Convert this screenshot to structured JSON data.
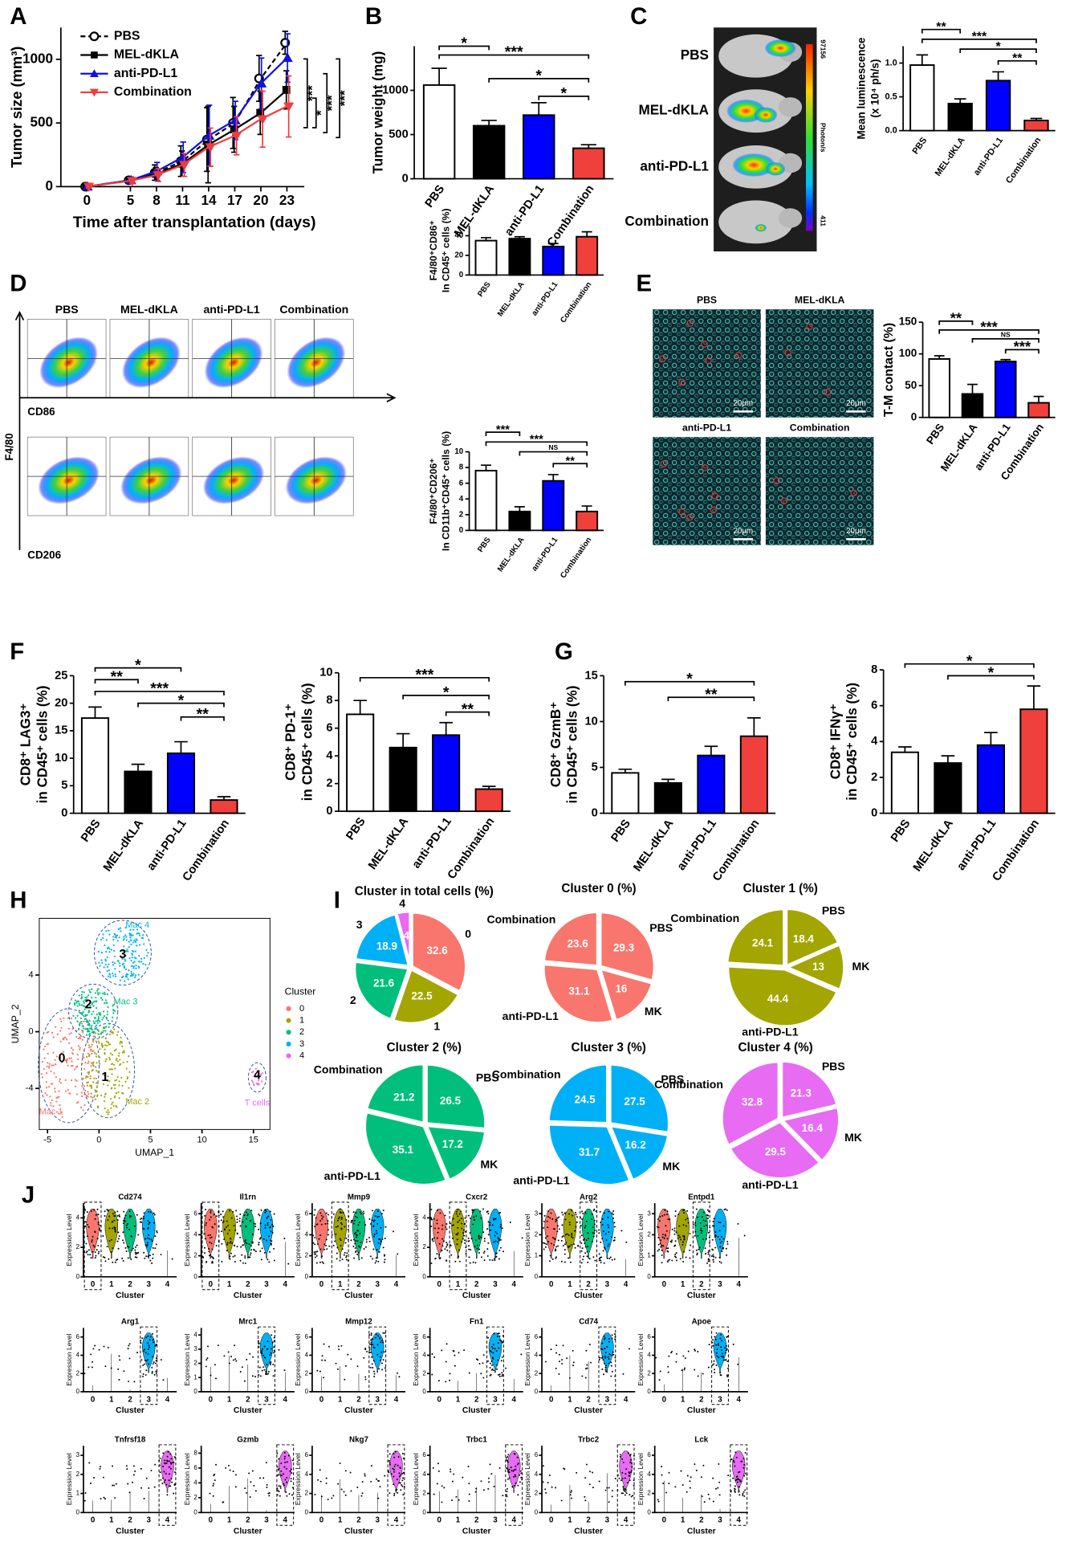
{
  "panels": [
    "A",
    "B",
    "C",
    "D",
    "E",
    "F",
    "G",
    "H",
    "I",
    "J"
  ],
  "chart_data": [
    {
      "type": "line",
      "x_label": "Time after transplantation (days)",
      "y_label": "Tumor size (mm³)",
      "x": [
        0,
        5,
        8,
        11,
        14,
        17,
        20,
        23
      ],
      "xlim": [
        -3,
        25
      ],
      "xticks": [
        0,
        5,
        8,
        11,
        14,
        17,
        20,
        23
      ],
      "ylim": [
        0,
        1250
      ],
      "yticks": [
        0,
        500,
        1000
      ],
      "series": [
        {
          "name": "PBS",
          "color": "#000000",
          "marker": "circle-open",
          "line_style": "dashed",
          "values": [
            0,
            50,
            110,
            200,
            370,
            500,
            850,
            1130
          ],
          "errors": [
            10,
            20,
            60,
            120,
            250,
            200,
            180,
            90
          ]
        },
        {
          "name": "MEL-dKLA",
          "color": "#000000",
          "marker": "square",
          "line_style": "solid",
          "values": [
            0,
            50,
            100,
            180,
            330,
            450,
            580,
            760
          ],
          "errors": [
            10,
            20,
            50,
            100,
            300,
            180,
            170,
            150
          ]
        },
        {
          "name": "anti-PD-L1",
          "color": "#1010e0",
          "marker": "triangle",
          "line_style": "solid",
          "values": [
            0,
            50,
            120,
            230,
            400,
            520,
            810,
            1010
          ],
          "errors": [
            10,
            25,
            70,
            120,
            240,
            150,
            200,
            190
          ]
        },
        {
          "name": "Combination",
          "color": "#f03c3c",
          "marker": "triangle-down",
          "line_style": "solid",
          "values": [
            0,
            45,
            90,
            170,
            310,
            400,
            530,
            630
          ],
          "errors": [
            10,
            20,
            50,
            90,
            150,
            150,
            220,
            240
          ]
        }
      ],
      "annotations": [
        "***",
        "*",
        "***",
        "***"
      ]
    },
    {
      "type": "bar",
      "y_label": "Tumor weight (mg)",
      "categories": [
        "PBS",
        "MEL-dKLA",
        "anti-PD-L1",
        "Combination"
      ],
      "values": [
        1060,
        600,
        720,
        345
      ],
      "errors": [
        190,
        60,
        140,
        40
      ],
      "colors": [
        "#ffffff",
        "#000000",
        "#0000ff",
        "#f0403c"
      ],
      "ylim": [
        0,
        1500
      ],
      "yticks": [
        0,
        500,
        1000
      ],
      "annotations": [
        "*",
        "***",
        "*",
        "*"
      ]
    },
    {
      "type": "bar",
      "y_label": [
        "Mean luminescence",
        "(x 10⁴ ph/s)"
      ],
      "categories": [
        "PBS",
        "MEL-dKLA",
        "anti-PD-L1",
        "Combination"
      ],
      "values": [
        0.97,
        0.4,
        0.74,
        0.15
      ],
      "errors": [
        0.15,
        0.07,
        0.13,
        0.03
      ],
      "colors": [
        "#ffffff",
        "#000000",
        "#0000ff",
        "#f0403c"
      ],
      "ylim": [
        0,
        1.25
      ],
      "yticks": [
        {
          "value": 0,
          "label": "0.0"
        },
        {
          "value": 0.5,
          "label": "0.5"
        },
        {
          "value": 1,
          "label": "1.0"
        }
      ],
      "annotations": [
        "**",
        "***",
        "*",
        "**"
      ]
    },
    {
      "type": "bar",
      "y_label": [
        "F4/80⁺CD86⁺",
        "In CD45⁺ cells (%)"
      ],
      "categories": [
        "PBS",
        "MEL-dKLA",
        "anti-PD-L1",
        "Combination"
      ],
      "values": [
        35,
        37,
        29,
        39
      ],
      "errors": [
        3,
        2,
        3,
        5
      ],
      "colors": [
        "#ffffff",
        "#000000",
        "#0000ff",
        "#f0403c"
      ],
      "ylim": [
        0,
        50
      ],
      "yticks": [
        0,
        20,
        40
      ],
      "annotations": []
    },
    {
      "type": "bar",
      "y_label": [
        "F4/80⁺CD206⁺",
        "In CD11b⁺CD45⁺ cells (%)"
      ],
      "categories": [
        "PBS",
        "MEL-dKLA",
        "anti-PD-L1",
        "Combination"
      ],
      "values": [
        7.6,
        2.4,
        6.3,
        2.4
      ],
      "errors": [
        0.7,
        0.6,
        0.8,
        0.7
      ],
      "colors": [
        "#ffffff",
        "#000000",
        "#0000ff",
        "#f0403c"
      ],
      "ylim": [
        0,
        10
      ],
      "yticks": [
        0,
        2,
        4,
        6,
        8,
        10
      ],
      "annotations": [
        "***",
        "***",
        "NS",
        "**"
      ]
    },
    {
      "type": "bar",
      "y_label": "T-M contact (%)",
      "categories": [
        "PBS",
        "MEL-dKLA",
        "anti-PD-L1",
        "Combination"
      ],
      "values": [
        92,
        37,
        88,
        23
      ],
      "errors": [
        5,
        15,
        3,
        10
      ],
      "colors": [
        "#ffffff",
        "#000000",
        "#0000ff",
        "#f0403c"
      ],
      "ylim": [
        0,
        150
      ],
      "yticks": [
        0,
        50,
        100,
        150
      ],
      "annotations": [
        "**",
        "***",
        "NS",
        "***"
      ]
    },
    {
      "type": "bar",
      "y_label": [
        "CD8⁺ LAG3⁺",
        "in CD45⁺ cells (%)"
      ],
      "categories": [
        "PBS",
        "MEL-dKLA",
        "anti-PD-L1",
        "Combination"
      ],
      "values": [
        17.3,
        7.6,
        10.9,
        2.4
      ],
      "errors": [
        2,
        1.3,
        2.1,
        0.6
      ],
      "colors": [
        "#ffffff",
        "#000000",
        "#0000ff",
        "#f0403c"
      ],
      "ylim": [
        0,
        25
      ],
      "yticks": [
        0,
        5,
        10,
        15,
        20,
        25
      ],
      "annotations": [
        "*",
        "**",
        "***",
        "*",
        "**"
      ]
    },
    {
      "type": "bar",
      "y_label": [
        "CD8⁺ PD-1⁺",
        "in CD45⁺ cells (%)"
      ],
      "categories": [
        "PBS",
        "MEL-dKLA",
        "anti-PD-L1",
        "Combination"
      ],
      "values": [
        7.0,
        4.6,
        5.5,
        1.6
      ],
      "errors": [
        1,
        1,
        0.9,
        0.2
      ],
      "colors": [
        "#ffffff",
        "#000000",
        "#0000ff",
        "#f0403c"
      ],
      "ylim": [
        0,
        10
      ],
      "yticks": [
        0,
        2,
        4,
        6,
        8,
        10
      ],
      "annotations": [
        "***",
        "*",
        "**"
      ]
    },
    {
      "type": "bar",
      "y_label": [
        "CD8⁺ GzmB⁺",
        "in CD45⁺ cells (%)"
      ],
      "categories": [
        "PBS",
        "MEL-dKLA",
        "anti-PD-L1",
        "Combination"
      ],
      "values": [
        4.4,
        3.3,
        6.3,
        8.4
      ],
      "errors": [
        0.4,
        0.4,
        1,
        2
      ],
      "colors": [
        "#ffffff",
        "#000000",
        "#0000ff",
        "#f0403c"
      ],
      "ylim": [
        0,
        15
      ],
      "yticks": [
        0,
        5,
        10,
        15
      ],
      "annotations": [
        "*",
        "**"
      ]
    },
    {
      "type": "bar",
      "y_label": [
        "CD8⁺ IFNγ⁺",
        "in CD45⁺ cells (%)"
      ],
      "categories": [
        "PBS",
        "MEL-dKLA",
        "anti-PD-L1",
        "Combination"
      ],
      "values": [
        3.4,
        2.8,
        3.8,
        5.8
      ],
      "errors": [
        0.3,
        0.4,
        0.7,
        1.3
      ],
      "colors": [
        "#ffffff",
        "#000000",
        "#0000ff",
        "#f0403c"
      ],
      "ylim": [
        0,
        8
      ],
      "yticks": [
        0,
        2,
        4,
        6,
        8
      ],
      "annotations": [
        "*",
        "*"
      ]
    },
    {
      "type": "pie",
      "title": "Cluster in total cells (%)",
      "categories": [
        "0",
        "1",
        "2",
        "3",
        "4"
      ],
      "values": [
        32.6,
        22.5,
        21.6,
        18.9,
        4
      ],
      "colors": [
        "#F8766D",
        "#A3A500",
        "#00BF7D",
        "#00B0F6",
        "#E76BF3"
      ]
    },
    {
      "type": "pie",
      "title": "Cluster 0 (%)",
      "categories": [
        "PBS",
        "MK",
        "anti-PD-L1",
        "Combination"
      ],
      "values": [
        29.3,
        16.0,
        31.1,
        23.6
      ],
      "colors": [
        "#F8766D",
        "#F8766D",
        "#F8766D",
        "#F8766D"
      ]
    },
    {
      "type": "pie",
      "title": "Cluster 1 (%)",
      "categories": [
        "PBS",
        "MK",
        "anti-PD-L1",
        "Combination"
      ],
      "values": [
        18.4,
        13.0,
        44.4,
        24.1
      ],
      "colors": [
        "#A3A500",
        "#A3A500",
        "#A3A500",
        "#A3A500"
      ]
    },
    {
      "type": "pie",
      "title": "Cluster 2 (%)",
      "categories": [
        "PBS",
        "MK",
        "anti-PD-L1",
        "Combination"
      ],
      "values": [
        26.5,
        17.2,
        35.1,
        21.2
      ],
      "colors": [
        "#00BF7D",
        "#00BF7D",
        "#00BF7D",
        "#00BF7D"
      ]
    },
    {
      "type": "pie",
      "title": "Cluster 3 (%)",
      "categories": [
        "PBS",
        "MK",
        "anti-PD-L1",
        "Combination"
      ],
      "values": [
        27.5,
        16.2,
        31.7,
        24.5
      ],
      "colors": [
        "#00B0F6",
        "#00B0F6",
        "#00B0F6",
        "#00B0F6"
      ]
    },
    {
      "type": "pie",
      "title": "Cluster 4 (%)",
      "categories": [
        "PBS",
        "MK",
        "anti-PD-L1",
        "Combination"
      ],
      "values": [
        21.3,
        16.4,
        29.5,
        32.8
      ],
      "colors": [
        "#E76BF3",
        "#E76BF3",
        "#E76BF3",
        "#E76BF3"
      ]
    }
  ],
  "images": {
    "C": {
      "labels": [
        "PBS",
        "MEL-dKLA",
        "anti-PD-L1",
        "Combination"
      ],
      "colorbar": [
        "97156",
        "Photon/s",
        "411"
      ]
    },
    "D": {
      "labels": [
        "PBS",
        "MEL-dKLA",
        "anti-PD-L1",
        "Combination"
      ],
      "x_markers": [
        "CD86",
        "CD206"
      ],
      "y_marker": "F4/80"
    },
    "E": {
      "labels": [
        "PBS",
        "MEL-dKLA",
        "anti-PD-L1",
        "Combination"
      ],
      "scale": "20μm"
    }
  },
  "umap": {
    "x_label": "UMAP_1",
    "y_label": "UMAP_2",
    "xlim": [
      -5.8,
      16.6
    ],
    "ylim": [
      -6.9,
      8
    ],
    "xticks": [
      -5,
      0,
      5,
      10,
      15
    ],
    "yticks": [
      -4,
      0,
      4
    ],
    "legend_title": "Cluster",
    "clusters": [
      "0",
      "1",
      "2",
      "3",
      "4"
    ],
    "colors": [
      "#F8766D",
      "#A3A500",
      "#00BF7D",
      "#00B0F6",
      "#E76BF3"
    ],
    "regions": [
      "Mac 1",
      "Mac 2",
      "Mac 3",
      "Mac 4",
      "T cells"
    ]
  },
  "violins": {
    "y_label": "Expression Level",
    "x_label": "Cluster",
    "categories": [
      "0",
      "1",
      "2",
      "3",
      "4"
    ],
    "genes": [
      {
        "name": "Cd274",
        "highlight": 0,
        "ylim": [
          0,
          5
        ],
        "yticks": [
          0,
          2,
          4
        ]
      },
      {
        "name": "Il1rn",
        "highlight": 0,
        "ylim": [
          0,
          7
        ],
        "yticks": [
          0,
          2,
          4,
          6
        ]
      },
      {
        "name": "Mmp9",
        "highlight": 1,
        "ylim": [
          0,
          7
        ],
        "yticks": [
          0,
          2,
          4,
          6
        ]
      },
      {
        "name": "Cxcr2",
        "highlight": 1,
        "ylim": [
          0,
          5
        ],
        "yticks": [
          0,
          2,
          4
        ]
      },
      {
        "name": "Arg2",
        "highlight": 2,
        "ylim": [
          0,
          3.5
        ],
        "yticks": [
          0,
          1,
          2,
          3
        ]
      },
      {
        "name": "Entpd1",
        "highlight": 2,
        "ylim": [
          0,
          3.5
        ],
        "yticks": [
          0,
          1,
          2,
          3
        ]
      },
      {
        "name": "Arg1",
        "highlight": 3,
        "ylim": [
          0,
          7
        ],
        "yticks": [
          0,
          2,
          4,
          6
        ]
      },
      {
        "name": "Mrc1",
        "highlight": 3,
        "ylim": [
          0,
          4.5
        ],
        "yticks": [
          0,
          1,
          2,
          3,
          4
        ]
      },
      {
        "name": "Mmp12",
        "highlight": 3,
        "ylim": [
          0,
          7
        ],
        "yticks": [
          0,
          2,
          4,
          6
        ]
      },
      {
        "name": "Fn1",
        "highlight": 3,
        "ylim": [
          0,
          7
        ],
        "yticks": [
          0,
          2,
          4,
          6
        ]
      },
      {
        "name": "Cd74",
        "highlight": 3,
        "ylim": [
          0,
          7
        ],
        "yticks": [
          0,
          2,
          4,
          6
        ]
      },
      {
        "name": "Apoe",
        "highlight": 3,
        "ylim": [
          0,
          7
        ],
        "yticks": [
          0,
          2,
          4,
          6
        ]
      },
      {
        "name": "Tnfrsf18",
        "highlight": 4,
        "ylim": [
          0,
          3.5
        ],
        "yticks": [
          0,
          1,
          2,
          3
        ]
      },
      {
        "name": "Gzmb",
        "highlight": 4,
        "ylim": [
          0,
          9
        ],
        "yticks": [
          0,
          2,
          4,
          6,
          8
        ]
      },
      {
        "name": "Nkg7",
        "highlight": 4,
        "ylim": [
          0,
          7
        ],
        "yticks": [
          0,
          2,
          4,
          6
        ]
      },
      {
        "name": "Trbc1",
        "highlight": 4,
        "ylim": [
          0,
          7
        ],
        "yticks": [
          0,
          2,
          4,
          6
        ]
      },
      {
        "name": "Trbc2",
        "highlight": 4,
        "ylim": [
          0,
          7
        ],
        "yticks": [
          0,
          2,
          4,
          6
        ]
      },
      {
        "name": "Lck",
        "highlight": 4,
        "ylim": [
          0,
          7
        ],
        "yticks": [
          0,
          2,
          4,
          6
        ]
      }
    ]
  }
}
